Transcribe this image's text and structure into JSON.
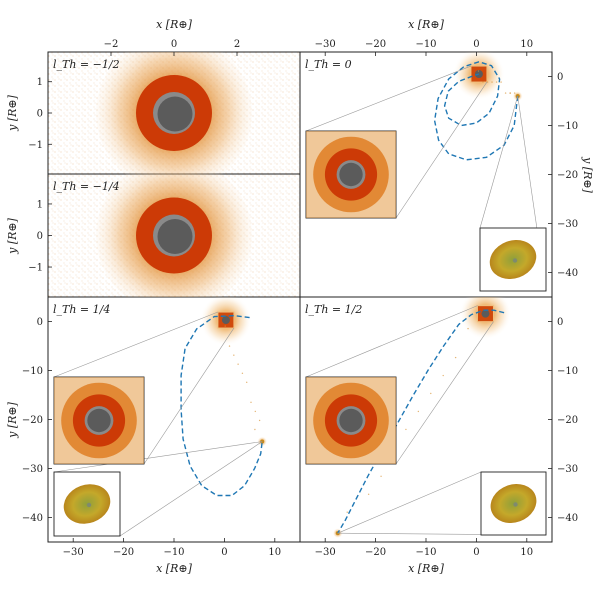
{
  "chart_data": [
    {
      "type": "scatter",
      "panel": "top-left-upper",
      "label": "l_Th = −1/2",
      "xlabel": "x [R⊕]",
      "ylabel": "y [R⊕]",
      "xlim": [
        -4,
        4
      ],
      "ylim": [
        -1.95,
        1.95
      ],
      "x_ticks": [
        -2,
        0,
        2
      ],
      "y_ticks": [
        -1,
        0,
        1
      ],
      "x_tick_labels": [
        "−2",
        "0",
        "2"
      ],
      "y_tick_labels": [
        "−1",
        "0",
        "1"
      ],
      "center": [
        0,
        0
      ]
    },
    {
      "type": "scatter",
      "panel": "top-left-lower",
      "label": "l_Th = −1/4",
      "ylabel": "y [R⊕]",
      "xlim": [
        -4,
        4
      ],
      "ylim": [
        -1.95,
        1.95
      ],
      "y_ticks": [
        -1,
        0,
        1
      ],
      "y_tick_labels": [
        "−1",
        "0",
        "1"
      ],
      "center": [
        0,
        0
      ]
    },
    {
      "type": "line",
      "panel": "top-right",
      "label": "l_Th = 0",
      "xlabel": "x [R⊕]",
      "ylabel": "y [R⊕]",
      "xlim": [
        -35,
        15
      ],
      "ylim": [
        -45,
        5
      ],
      "x_ticks": [
        -30,
        -20,
        -10,
        0,
        10
      ],
      "y_ticks": [
        0,
        -10,
        -20,
        -30,
        -40
      ],
      "x_tick_labels": [
        "−30",
        "−20",
        "−10",
        "0",
        "10"
      ],
      "y_tick_labels": [
        "0",
        "−10",
        "−20",
        "−30",
        "−40"
      ],
      "center": [
        0.5,
        0.5
      ],
      "secondary_body": [
        8.2,
        -4.0
      ],
      "orbit": [
        [
          8.2,
          -4
        ],
        [
          7.5,
          -10
        ],
        [
          5.5,
          -14
        ],
        [
          2,
          -16.5
        ],
        [
          -2,
          -17
        ],
        [
          -5.5,
          -15.8
        ],
        [
          -7.5,
          -13
        ],
        [
          -8.3,
          -9
        ],
        [
          -7.6,
          -4.5
        ],
        [
          -5.5,
          -0.5
        ],
        [
          -2.5,
          2
        ],
        [
          0.5,
          3
        ],
        [
          3,
          2.2
        ],
        [
          4.6,
          -0.5
        ],
        [
          4.2,
          -4
        ],
        [
          2.5,
          -7.5
        ],
        [
          0,
          -9.5
        ],
        [
          -3,
          -10
        ],
        [
          -5.5,
          -8.5
        ],
        [
          -6.3,
          -6
        ],
        [
          -5.6,
          -3
        ],
        [
          -3.5,
          -1
        ],
        [
          -1,
          0
        ],
        [
          0.5,
          0.5
        ]
      ]
    },
    {
      "type": "line",
      "panel": "bottom-left",
      "label": "l_Th = 1/4",
      "xlabel": "x [R⊕]",
      "ylabel": "y [R⊕]",
      "xlim": [
        -35,
        15
      ],
      "ylim": [
        -45,
        5
      ],
      "x_ticks": [
        -30,
        -20,
        -10,
        0,
        10
      ],
      "y_ticks": [
        0,
        -10,
        -20,
        -30,
        -40
      ],
      "x_tick_labels": [
        "−30",
        "−20",
        "−10",
        "0",
        "10"
      ],
      "y_tick_labels": [
        "0",
        "−10",
        "−20",
        "−30",
        "−40"
      ],
      "center": [
        0.3,
        0.3
      ],
      "secondary_body": [
        7.5,
        -24.5
      ],
      "orbit": [
        [
          5,
          0.8
        ],
        [
          2,
          1.2
        ],
        [
          -2,
          1
        ],
        [
          -5.5,
          -1.5
        ],
        [
          -7.8,
          -5.5
        ],
        [
          -8.6,
          -11
        ],
        [
          -8.6,
          -18
        ],
        [
          -8.2,
          -24
        ],
        [
          -6.8,
          -29.5
        ],
        [
          -4.5,
          -33.5
        ],
        [
          -1.5,
          -35.5
        ],
        [
          1.5,
          -35.5
        ],
        [
          4,
          -33.5
        ],
        [
          6,
          -30
        ],
        [
          7.2,
          -27
        ],
        [
          7.5,
          -24.5
        ]
      ]
    },
    {
      "type": "line",
      "panel": "bottom-right",
      "label": "l_Th = 1/2",
      "xlabel": "x [R⊕]",
      "xlim": [
        -35,
        15
      ],
      "ylim": [
        -45,
        5
      ],
      "x_ticks": [
        -30,
        -20,
        -10,
        0,
        10
      ],
      "y_ticks": [
        0,
        -10,
        -20,
        -30,
        -40
      ],
      "x_tick_labels": [
        "−30",
        "−20",
        "−10",
        "0",
        "10"
      ],
      "y_tick_labels": [
        "0",
        "−10",
        "−20",
        "−30",
        "−40"
      ],
      "center": [
        1.8,
        1.6
      ],
      "secondary_body": [
        -27.5,
        -43.2
      ],
      "orbit": [
        [
          5.5,
          1.8
        ],
        [
          3.5,
          2.3
        ],
        [
          1.5,
          2.3
        ],
        [
          -1,
          1.4
        ],
        [
          -3.5,
          -0.6
        ],
        [
          -6.5,
          -5
        ],
        [
          -9.5,
          -9.8
        ],
        [
          -12.5,
          -15
        ],
        [
          -15.5,
          -20.5
        ],
        [
          -18.5,
          -26
        ],
        [
          -21.5,
          -31.5
        ],
        [
          -24,
          -36.5
        ],
        [
          -26,
          -40.5
        ],
        [
          -27.5,
          -43.2
        ]
      ]
    }
  ]
}
